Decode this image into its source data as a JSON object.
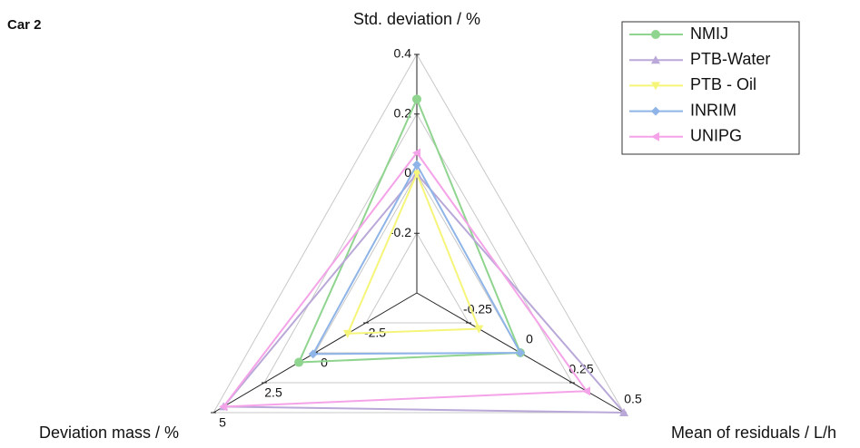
{
  "chart_data": {
    "type": "radar",
    "title": "Car 2",
    "axes": [
      {
        "label": "Std. deviation / %",
        "lim": [
          -0.4,
          0.4
        ],
        "ticks": [
          -0.2,
          0,
          0.2,
          0.4
        ]
      },
      {
        "label": "Mean of residuals / L/h",
        "lim": [
          -0.5,
          0.5
        ],
        "ticks": [
          -0.25,
          0,
          0.25,
          0.5
        ]
      },
      {
        "label": "Deviation mass / %",
        "lim": [
          -5,
          5
        ],
        "ticks": [
          -2.5,
          0,
          2.5,
          5
        ]
      }
    ],
    "grid": true,
    "legend": "upper right",
    "series": [
      {
        "name": "NMIJ",
        "color": "#8fd48f",
        "marker": "circle",
        "values": [
          0.25,
          0,
          0.8
        ]
      },
      {
        "name": "PTB-Water",
        "color": "#b9a8d8",
        "marker": "triangle-up",
        "values": [
          0,
          0.5,
          4.5
        ]
      },
      {
        "name": "PTB - Oil",
        "color": "#f5f57a",
        "marker": "triangle-down",
        "values": [
          0,
          -0.2,
          -1.6
        ]
      },
      {
        "name": "INRIM",
        "color": "#8fb4e8",
        "marker": "diamond",
        "values": [
          0.03,
          0,
          0.1
        ]
      },
      {
        "name": "UNIPG",
        "color": "#f5a3e8",
        "marker": "triangle-left",
        "values": [
          0.07,
          0.32,
          4.5
        ]
      }
    ]
  }
}
